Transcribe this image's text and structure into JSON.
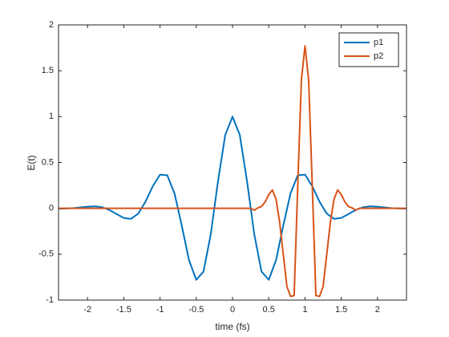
{
  "chart_data": {
    "type": "line",
    "x_label": "time (fs)",
    "y_label": "E(t)",
    "xlim": [
      -2.4,
      2.4
    ],
    "ylim": [
      -1,
      2
    ],
    "xticks": [
      -2,
      -1.5,
      -1,
      -0.5,
      0,
      0.5,
      1,
      1.5,
      2
    ],
    "yticks": [
      -1,
      -0.5,
      0,
      0.5,
      1,
      1.5,
      2
    ],
    "grid": false,
    "legend": "northeast",
    "series": [
      {
        "name": "p1",
        "color": "#0072bd",
        "x": [
          -2.4,
          -2.3,
          -2.2,
          -2.1,
          -2.0,
          -1.9,
          -1.8,
          -1.7,
          -1.6,
          -1.5,
          -1.4,
          -1.3,
          -1.2,
          -1.1,
          -1.0,
          -0.9,
          -0.8,
          -0.7,
          -0.6,
          -0.5,
          -0.4,
          -0.3,
          -0.2,
          -0.1,
          0,
          0.1,
          0.2,
          0.3,
          0.4,
          0.5,
          0.6,
          0.7,
          0.8,
          0.9,
          1.0,
          1.1,
          1.2,
          1.3,
          1.4,
          1.5,
          1.6,
          1.7,
          1.8,
          1.9,
          2.0,
          2.1,
          2.2,
          2.3,
          2.4
        ],
        "values": [
          -0.003,
          -0.002,
          0.002,
          0.01,
          0.018,
          0.022,
          0.012,
          -0.017,
          -0.062,
          -0.105,
          -0.114,
          -0.057,
          0.073,
          0.241,
          0.368,
          0.36,
          0.163,
          -0.189,
          -0.565,
          -0.779,
          -0.689,
          -0.282,
          0.297,
          0.801,
          1,
          0.801,
          0.297,
          -0.282,
          -0.689,
          -0.779,
          -0.565,
          -0.189,
          0.163,
          0.36,
          0.368,
          0.241,
          0.073,
          -0.057,
          -0.114,
          -0.105,
          -0.062,
          -0.017,
          0.012,
          0.022,
          0.018,
          0.01,
          0.002,
          -0.002,
          -0.003
        ]
      },
      {
        "name": "p2",
        "color": "#d95319",
        "x": [
          -2.4,
          0.25,
          0.3,
          0.35,
          0.4,
          0.45,
          0.5,
          0.55,
          0.6,
          0.65,
          0.7,
          0.75,
          0.8,
          0.85,
          0.9,
          0.95,
          1.0,
          1.05,
          1.1,
          1.15,
          1.2,
          1.25,
          1.3,
          1.35,
          1.4,
          1.45,
          1.5,
          1.55,
          1.6,
          1.65,
          1.7,
          1.75,
          2.4
        ],
        "values": [
          0,
          0,
          -0.02,
          0.005,
          0.02,
          0.07,
          0.15,
          0.2,
          0.1,
          -0.15,
          -0.5,
          -0.85,
          -0.96,
          -0.95,
          0.25,
          1.4,
          1.77,
          1.4,
          0.25,
          -0.95,
          -0.96,
          -0.85,
          -0.5,
          -0.15,
          0.1,
          0.2,
          0.15,
          0.07,
          0.02,
          0.005,
          -0.02,
          0,
          0
        ]
      }
    ]
  }
}
